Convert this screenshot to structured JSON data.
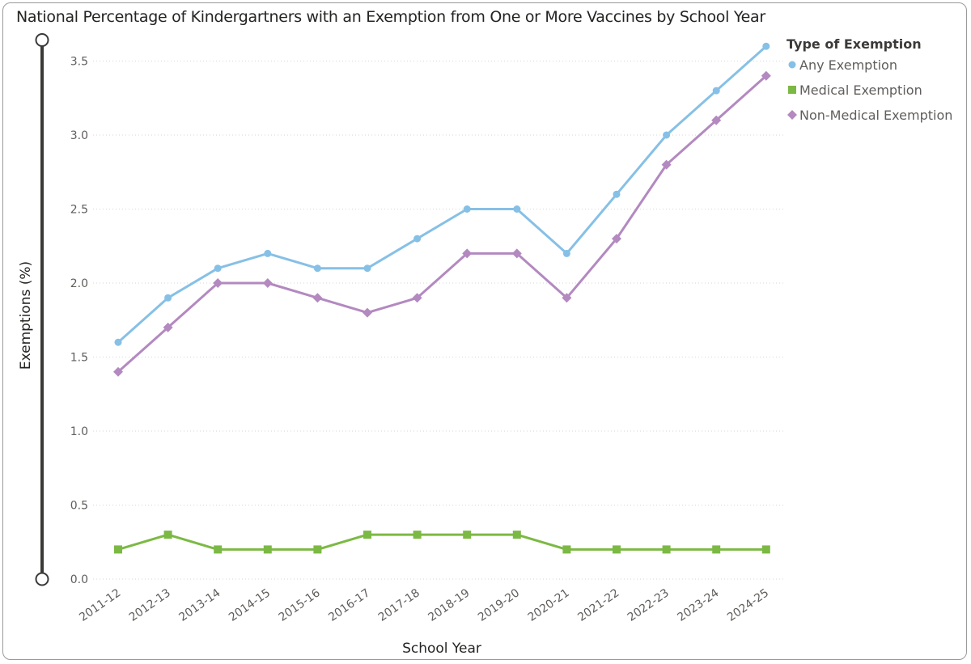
{
  "title": "National Percentage of Kindergartners with an Exemption from One or More Vaccines by School Year",
  "chart_data": {
    "type": "line",
    "title": "National Percentage of Kindergartners with an Exemption from One or More Vaccines by School Year",
    "xlabel": "School Year",
    "ylabel": "Exemptions (%)",
    "ylim": [
      0,
      3.5
    ],
    "yticks": [
      "0.0",
      "0.5",
      "1.0",
      "1.5",
      "2.0",
      "2.5",
      "3.0",
      "3.5"
    ],
    "grid": "horizontal dotted",
    "legend_placement": "top-right",
    "legend_title": "Type of Exemption",
    "categories": [
      "2011-12",
      "2012-13",
      "2013-14",
      "2014-15",
      "2015-16",
      "2016-17",
      "2017-18",
      "2018-19",
      "2019-20",
      "2020-21",
      "2021-22",
      "2022-23",
      "2023-24",
      "2024-25"
    ],
    "series": [
      {
        "name": "Any Exemption",
        "color": "#86c0e6",
        "marker": "circle",
        "values": [
          1.6,
          1.9,
          2.1,
          2.2,
          2.1,
          2.1,
          2.3,
          2.5,
          2.5,
          2.2,
          2.6,
          3.0,
          3.3,
          3.6
        ]
      },
      {
        "name": "Medical Exemption",
        "color": "#7cb944",
        "marker": "square",
        "values": [
          0.2,
          0.3,
          0.2,
          0.2,
          0.2,
          0.3,
          0.3,
          0.3,
          0.3,
          0.2,
          0.2,
          0.2,
          0.2,
          0.2
        ]
      },
      {
        "name": "Non-Medical Exemption",
        "color": "#b389c0",
        "marker": "diamond",
        "values": [
          1.4,
          1.7,
          2.0,
          2.0,
          1.9,
          1.8,
          1.9,
          2.2,
          2.2,
          1.9,
          2.3,
          2.8,
          3.1,
          3.4
        ]
      }
    ]
  }
}
